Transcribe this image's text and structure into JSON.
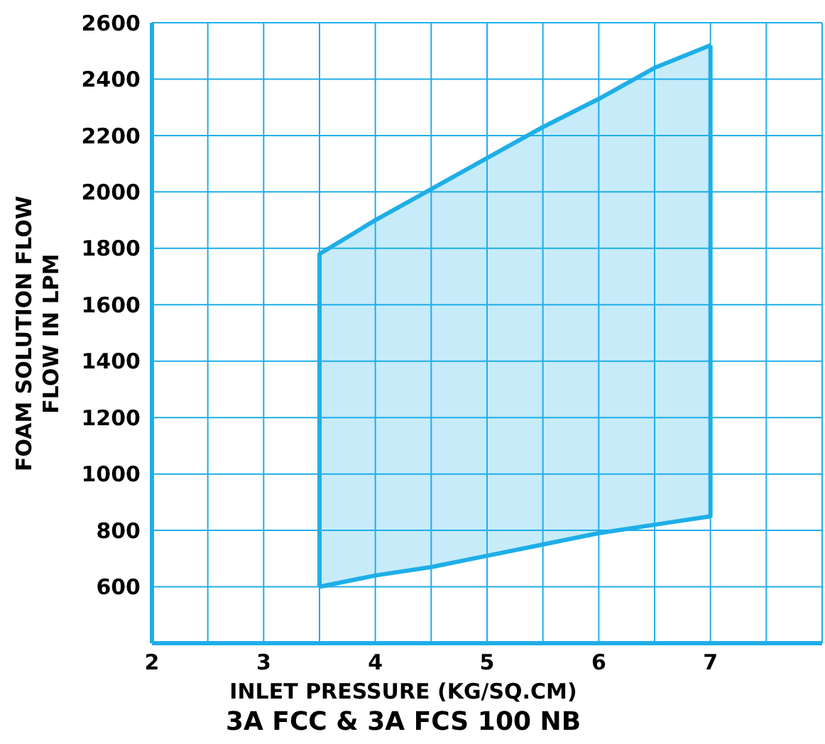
{
  "chart_data": {
    "type": "line",
    "title": "3A FCC & 3A FCS 100 NB",
    "xlabel": "INLET PRESSURE (KG/SQ.CM)",
    "ylabel": "FOAM SOLUTION FLOW\nFLOW IN LPM",
    "series": [
      {
        "color": "#1eaee8",
        "x": [
          3.5,
          3.5,
          4,
          4.5,
          5,
          5.5,
          6,
          6.5,
          7
        ],
        "values": [
          600,
          1780,
          1900,
          2010,
          2120,
          2230,
          2330,
          2440,
          2520
        ]
      },
      {
        "color": "#1eaee8",
        "x": [
          3.5,
          4,
          4.5,
          5,
          5.5,
          6,
          6.5,
          7,
          7
        ],
        "values": [
          600,
          640,
          670,
          710,
          750,
          790,
          820,
          850,
          2520
        ]
      }
    ],
    "xlim": [
      2,
      8
    ],
    "xticks": [
      2,
      {
        "value": 2.5,
        "label": null
      },
      3,
      {
        "value": 3.5,
        "label": null
      },
      4,
      {
        "value": 4.5,
        "label": null
      },
      5,
      {
        "value": 5.5,
        "label": null
      },
      6,
      {
        "value": 6.5,
        "label": null
      },
      7,
      {
        "value": 7.5,
        "label": null
      },
      {
        "value": 8,
        "label": null
      }
    ],
    "ylim": [
      400,
      2600
    ],
    "yticks": [
      {
        "value": 400,
        "label": null
      },
      600,
      800,
      1000,
      1200,
      1400,
      1600,
      1800,
      2000,
      2200,
      2400,
      2600
    ],
    "grid": true
  }
}
